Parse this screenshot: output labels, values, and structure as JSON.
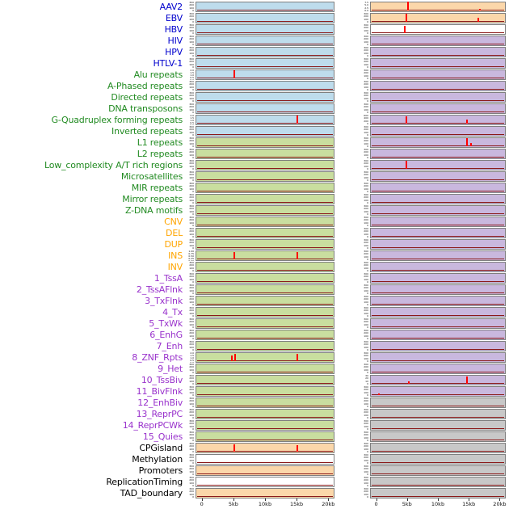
{
  "chart_data": {
    "type": "area",
    "title": "",
    "xlabel": "",
    "ylabel": "",
    "x_range_kb": [
      0,
      20
    ],
    "x_ticks": [
      "0",
      "5kb",
      "10kb",
      "15kb",
      "20kb"
    ],
    "grid": false,
    "legend_position": "none",
    "columns": 2,
    "label_colors": {
      "virus": "#0000cd",
      "repeat": "#228b22",
      "variant": "#ffa500",
      "chromatin": "#9932cc",
      "other": "#000000"
    },
    "panel_colors": {
      "blue": "#bedcec",
      "green": "#c9de9f",
      "orange": "#fbd7aa",
      "purple": "#c9b8de",
      "gray": "#c8c8c8",
      "white": "#ffffff"
    },
    "default_yticks": [
      "300",
      "200",
      "100",
      "0"
    ],
    "rows": [
      {
        "label": "AAV2",
        "group": "virus",
        "left": {
          "bg": "blue"
        },
        "right": {
          "bg": "orange",
          "yticks": [
            "7.5",
            "5.0",
            "2.5",
            "0.0"
          ],
          "spikes": [
            [
              5,
              0.97
            ],
            [
              16.6,
              0.2
            ]
          ]
        }
      },
      {
        "label": "EBV",
        "group": "virus",
        "left": {
          "bg": "blue"
        },
        "right": {
          "bg": "orange",
          "spikes": [
            [
              4.8,
              0.9
            ],
            [
              16.4,
              0.5
            ]
          ]
        }
      },
      {
        "label": "HBV",
        "group": "virus",
        "left": {
          "bg": "blue"
        },
        "right": {
          "bg": "white",
          "spikes": [
            [
              4.5,
              0.8
            ]
          ]
        }
      },
      {
        "label": "HIV",
        "group": "virus",
        "left": {
          "bg": "blue"
        },
        "right": {
          "bg": "purple"
        }
      },
      {
        "label": "HPV",
        "group": "virus",
        "left": {
          "bg": "blue"
        },
        "right": {
          "bg": "purple"
        }
      },
      {
        "label": "HTLV-1",
        "group": "virus",
        "left": {
          "bg": "blue"
        },
        "right": {
          "bg": "purple"
        }
      },
      {
        "label": "Alu repeats",
        "group": "repeat",
        "left": {
          "bg": "blue",
          "yticks": [
            "2.0",
            "1.5",
            "1.0",
            "0.5",
            "0.0"
          ],
          "spikes": [
            [
              5,
              0.92
            ]
          ]
        },
        "right": {
          "bg": "purple"
        }
      },
      {
        "label": "A-Phased repeats",
        "group": "repeat",
        "left": {
          "bg": "blue"
        },
        "right": {
          "bg": "purple"
        }
      },
      {
        "label": "Directed repeats",
        "group": "repeat",
        "left": {
          "bg": "blue"
        },
        "right": {
          "bg": "purple"
        }
      },
      {
        "label": "DNA transposons",
        "group": "repeat",
        "left": {
          "bg": "blue"
        },
        "right": {
          "bg": "purple"
        }
      },
      {
        "label": "G-Quadruplex forming repeats",
        "group": "repeat",
        "left": {
          "bg": "blue",
          "yticks": [
            "2.0",
            "1.5",
            "1.0",
            "0.5",
            "0.0"
          ],
          "spikes": [
            [
              15,
              0.9
            ]
          ]
        },
        "right": {
          "bg": "purple",
          "yticks": [
            "600",
            "400",
            "200",
            "0"
          ],
          "spikes": [
            [
              4.8,
              0.85
            ],
            [
              14.6,
              0.45
            ]
          ]
        }
      },
      {
        "label": "Inverted repeats",
        "group": "repeat",
        "left": {
          "bg": "blue"
        },
        "right": {
          "bg": "purple"
        }
      },
      {
        "label": "L1 repeats",
        "group": "repeat",
        "left": {
          "bg": "green"
        },
        "right": {
          "bg": "purple",
          "yticks": [
            "300",
            "200",
            "100",
            "0"
          ],
          "spikes": [
            [
              14.6,
              0.9
            ],
            [
              15.2,
              0.35
            ]
          ]
        }
      },
      {
        "label": "L2 repeats",
        "group": "repeat",
        "left": {
          "bg": "green"
        },
        "right": {
          "bg": "purple"
        }
      },
      {
        "label": "Low_complexity A/T rich regions",
        "group": "repeat",
        "left": {
          "bg": "green"
        },
        "right": {
          "bg": "purple",
          "yticks": [
            "300",
            "200",
            "100",
            "0"
          ],
          "spikes": [
            [
              4.8,
              0.9
            ]
          ]
        }
      },
      {
        "label": "Microsatellites",
        "group": "repeat",
        "left": {
          "bg": "green"
        },
        "right": {
          "bg": "purple"
        }
      },
      {
        "label": "MIR repeats",
        "group": "repeat",
        "left": {
          "bg": "green"
        },
        "right": {
          "bg": "purple"
        }
      },
      {
        "label": "Mirror repeats",
        "group": "repeat",
        "left": {
          "bg": "green"
        },
        "right": {
          "bg": "purple"
        }
      },
      {
        "label": "Z-DNA motifs",
        "group": "repeat",
        "left": {
          "bg": "green"
        },
        "right": {
          "bg": "purple"
        }
      },
      {
        "label": "CNV",
        "group": "variant",
        "left": {
          "bg": "green"
        },
        "right": {
          "bg": "purple"
        }
      },
      {
        "label": "DEL",
        "group": "variant",
        "left": {
          "bg": "green"
        },
        "right": {
          "bg": "purple"
        }
      },
      {
        "label": "DUP",
        "group": "variant",
        "left": {
          "bg": "green"
        },
        "right": {
          "bg": "purple"
        }
      },
      {
        "label": "INS",
        "group": "variant",
        "left": {
          "bg": "green",
          "yticks": [
            "1.00",
            "0.75",
            "0.50",
            "0.25",
            "0.00"
          ],
          "spikes": [
            [
              5,
              0.85
            ],
            [
              15,
              0.8
            ]
          ]
        },
        "right": {
          "bg": "purple"
        }
      },
      {
        "label": "INV",
        "group": "variant",
        "left": {
          "bg": "green"
        },
        "right": {
          "bg": "purple"
        }
      },
      {
        "label": "1_TssA",
        "group": "chromatin",
        "left": {
          "bg": "green"
        },
        "right": {
          "bg": "purple"
        }
      },
      {
        "label": "2_TssAFlnk",
        "group": "chromatin",
        "left": {
          "bg": "green"
        },
        "right": {
          "bg": "purple"
        }
      },
      {
        "label": "3_TxFlnk",
        "group": "chromatin",
        "left": {
          "bg": "green"
        },
        "right": {
          "bg": "purple"
        }
      },
      {
        "label": "4_Tx",
        "group": "chromatin",
        "left": {
          "bg": "green"
        },
        "right": {
          "bg": "purple"
        }
      },
      {
        "label": "5_TxWk",
        "group": "chromatin",
        "left": {
          "bg": "green"
        },
        "right": {
          "bg": "purple"
        }
      },
      {
        "label": "6_EnhG",
        "group": "chromatin",
        "left": {
          "bg": "green"
        },
        "right": {
          "bg": "purple"
        }
      },
      {
        "label": "7_Enh",
        "group": "chromatin",
        "left": {
          "bg": "green"
        },
        "right": {
          "bg": "purple"
        }
      },
      {
        "label": "8_ZNF_Rpts",
        "group": "chromatin",
        "left": {
          "bg": "green",
          "yticks": [
            "2.0",
            "1.5",
            "1.0",
            "0.5",
            "0.0"
          ],
          "spikes": [
            [
              4.6,
              0.6
            ],
            [
              5.1,
              0.85
            ],
            [
              15,
              0.8
            ]
          ]
        },
        "right": {
          "bg": "purple"
        }
      },
      {
        "label": "9_Het",
        "group": "chromatin",
        "left": {
          "bg": "green"
        },
        "right": {
          "bg": "purple"
        }
      },
      {
        "label": "10_TssBiv",
        "group": "chromatin",
        "left": {
          "bg": "green"
        },
        "right": {
          "bg": "purple",
          "yticks": [
            "30",
            "20",
            "10",
            "0"
          ],
          "spikes": [
            [
              5.1,
              0.3
            ],
            [
              14.6,
              0.85
            ]
          ]
        }
      },
      {
        "label": "11_BivFlnk",
        "group": "chromatin",
        "left": {
          "bg": "green"
        },
        "right": {
          "bg": "purple",
          "spikes": [
            [
              0.3,
              0.2
            ]
          ]
        }
      },
      {
        "label": "12_EnhBiv",
        "group": "chromatin",
        "left": {
          "bg": "green"
        },
        "right": {
          "bg": "gray"
        }
      },
      {
        "label": "13_ReprPC",
        "group": "chromatin",
        "left": {
          "bg": "green"
        },
        "right": {
          "bg": "gray"
        }
      },
      {
        "label": "14_ReprPCWk",
        "group": "chromatin",
        "left": {
          "bg": "green"
        },
        "right": {
          "bg": "gray"
        }
      },
      {
        "label": "15_Quies",
        "group": "chromatin",
        "left": {
          "bg": "green"
        },
        "right": {
          "bg": "gray"
        }
      },
      {
        "label": "CPGisland",
        "group": "other",
        "left": {
          "bg": "orange",
          "spikes": [
            [
              5,
              0.85
            ],
            [
              15,
              0.75
            ]
          ]
        },
        "right": {
          "bg": "gray"
        }
      },
      {
        "label": "Methylation",
        "group": "other",
        "left": {
          "bg": "white"
        },
        "right": {
          "bg": "gray"
        }
      },
      {
        "label": "Promoters",
        "group": "other",
        "left": {
          "bg": "orange"
        },
        "right": {
          "bg": "gray"
        }
      },
      {
        "label": "ReplicationTiming",
        "group": "other",
        "left": {
          "bg": "white"
        },
        "right": {
          "bg": "gray"
        }
      },
      {
        "label": "TAD_boundary",
        "group": "other",
        "left": {
          "bg": "orange"
        },
        "right": {
          "bg": "gray"
        }
      }
    ]
  }
}
